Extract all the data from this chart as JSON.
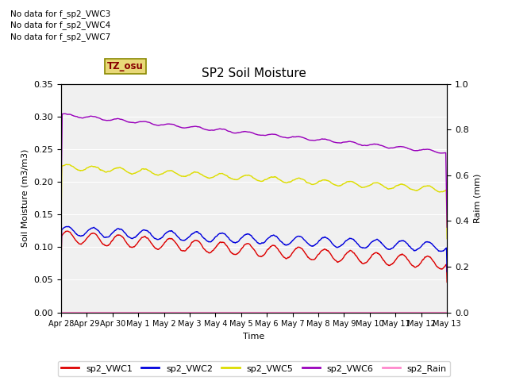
{
  "title": "SP2 Soil Moisture",
  "xlabel": "Time",
  "ylabel_left": "Soil Moisture (m3/m3)",
  "ylabel_right": "Raim (mm)",
  "no_data_texts": [
    "No data for f_sp2_VWC3",
    "No data for f_sp2_VWC4",
    "No data for f_sp2_VWC7"
  ],
  "tz_label": "TZ_osu",
  "xtick_labels": [
    "Apr 28",
    "Apr 29",
    "Apr 30",
    "May 1",
    "May 2",
    "May 3",
    "May 4",
    "May 5",
    "May 6",
    "May 7",
    "May 8",
    "May 9",
    "May 10",
    "May 11",
    "May 12",
    "May 13"
  ],
  "ylim_left": [
    0.0,
    0.35
  ],
  "ylim_right": [
    0.0,
    1.0
  ],
  "yticks_left": [
    0.0,
    0.05,
    0.1,
    0.15,
    0.2,
    0.25,
    0.3,
    0.35
  ],
  "yticks_right": [
    0.0,
    0.2,
    0.4,
    0.6,
    0.8,
    1.0
  ],
  "background_color": "#e8e8e8",
  "plot_bg_color": "#f0f0f0",
  "colors": {
    "vwc1": "#dd0000",
    "vwc2": "#0000dd",
    "vwc5": "#dddd00",
    "vwc6": "#9900bb",
    "rain": "#ff88cc"
  },
  "legend_labels": [
    "sp2_VWC1",
    "sp2_VWC2",
    "sp2_VWC5",
    "sp2_VWC6",
    "sp2_Rain"
  ],
  "figsize": [
    6.4,
    4.8
  ],
  "dpi": 100
}
